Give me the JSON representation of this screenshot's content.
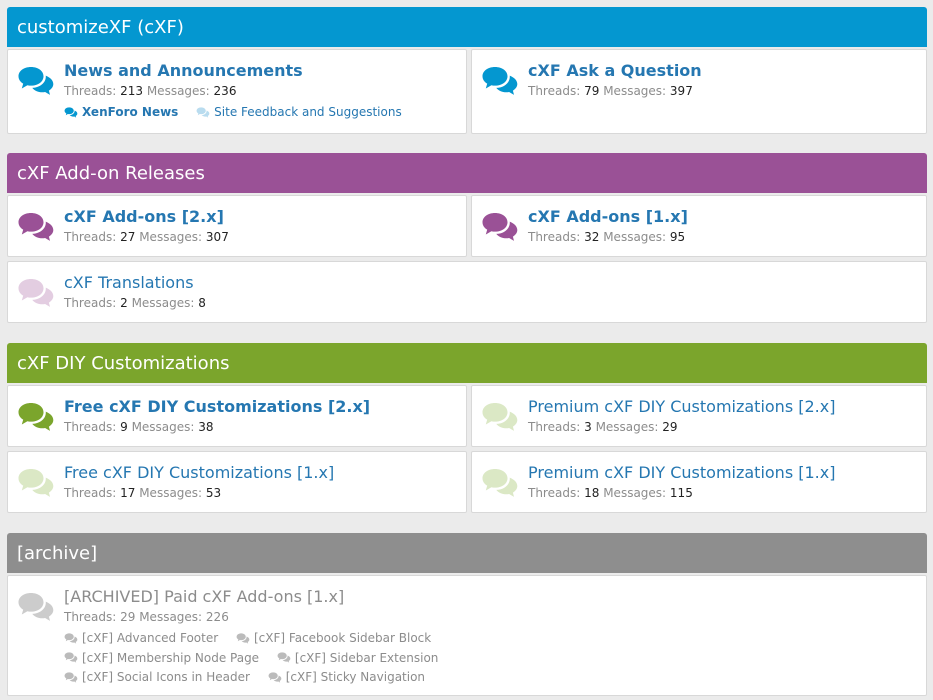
{
  "colors": {
    "blue": "#0497d0",
    "purple": "#9a5196",
    "green": "#7ba52c",
    "grey": "#8e8e8e"
  },
  "categories": [
    {
      "title": "customizeXF (cXF)",
      "forums": [
        {
          "title": "News and Announcements",
          "threads_label": "Threads:",
          "threads": "213",
          "messages_label": "Messages:",
          "messages": "236",
          "subforums": [
            {
              "label": "XenForo News"
            },
            {
              "label": "Site Feedback and Suggestions"
            }
          ]
        },
        {
          "title": "cXF Ask a Question",
          "threads_label": "Threads:",
          "threads": "79",
          "messages_label": "Messages:",
          "messages": "397"
        }
      ]
    },
    {
      "title": "cXF Add-on Releases",
      "forums": [
        {
          "title": "cXF Add-ons [2.x]",
          "threads_label": "Threads:",
          "threads": "27",
          "messages_label": "Messages:",
          "messages": "307"
        },
        {
          "title": "cXF Add-ons [1.x]",
          "threads_label": "Threads:",
          "threads": "32",
          "messages_label": "Messages:",
          "messages": "95"
        },
        {
          "title": "cXF Translations",
          "threads_label": "Threads:",
          "threads": "2",
          "messages_label": "Messages:",
          "messages": "8"
        }
      ]
    },
    {
      "title": "cXF DIY Customizations",
      "forums": [
        {
          "title": "Free cXF DIY Customizations [2.x]",
          "threads_label": "Threads:",
          "threads": "9",
          "messages_label": "Messages:",
          "messages": "38"
        },
        {
          "title": "Premium cXF DIY Customizations [2.x]",
          "threads_label": "Threads:",
          "threads": "3",
          "messages_label": "Messages:",
          "messages": "29"
        },
        {
          "title": "Free cXF DIY Customizations [1.x]",
          "threads_label": "Threads:",
          "threads": "17",
          "messages_label": "Messages:",
          "messages": "53"
        },
        {
          "title": "Premium cXF DIY Customizations [1.x]",
          "threads_label": "Threads:",
          "threads": "18",
          "messages_label": "Messages:",
          "messages": "115"
        }
      ]
    },
    {
      "title": "[archive]",
      "forums": [
        {
          "title": "[ARCHIVED] Paid cXF Add-ons [1.x]",
          "threads_label": "Threads:",
          "threads": "29",
          "messages_label": "Messages:",
          "messages": "226",
          "subforums": [
            {
              "label": "[cXF] Advanced Footer"
            },
            {
              "label": "[cXF] Facebook Sidebar Block"
            },
            {
              "label": "[cXF] Membership Node Page"
            },
            {
              "label": "[cXF] Sidebar Extension"
            },
            {
              "label": "[cXF] Social Icons in Header"
            },
            {
              "label": "[cXF] Sticky Navigation"
            }
          ]
        }
      ]
    }
  ]
}
